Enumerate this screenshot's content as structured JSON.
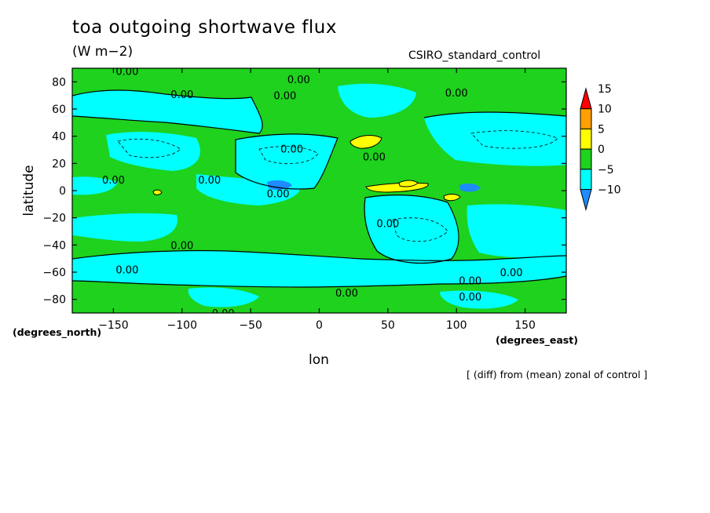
{
  "header": {
    "title": "toa outgoing shortwave flux",
    "units": "(W m−2)",
    "run_name": "CSIRO_standard_control",
    "footnote": "[ (diff) from (mean) zonal of control ]"
  },
  "colors": {
    "neg10": "#1e8cff",
    "neg5": "#00ffff",
    "zero": "#1ed21e",
    "pos5": "#ffff00",
    "pos10": "#ffa000",
    "pos15": "#ff0000",
    "contour": "#000000"
  },
  "chart_data": {
    "type": "contour map",
    "xlabel": "lon",
    "ylabel": "latitude",
    "x_unit_label": "(degrees_east)",
    "y_unit_label": "(degrees_north)",
    "xlim": [
      -180,
      180
    ],
    "ylim": [
      -90,
      90
    ],
    "x_ticks": [
      -150,
      -100,
      -50,
      0,
      50,
      100,
      150
    ],
    "x_tick_labels": [
      "−150",
      "−100",
      "−50",
      "0",
      "50",
      "100",
      "150"
    ],
    "y_ticks": [
      80,
      60,
      40,
      20,
      0,
      -20,
      -40,
      -60,
      -80
    ],
    "y_tick_labels": [
      "80",
      "60",
      "40",
      "20",
      "0",
      "−20",
      "−40",
      "−60",
      "−80"
    ],
    "colorbar": {
      "levels": [
        -10,
        -5,
        0,
        5,
        10,
        15
      ],
      "labels": [
        "−10",
        "−5",
        "0",
        "5",
        "10",
        "15"
      ],
      "colors": [
        "#1e8cff",
        "#00ffff",
        "#1ed21e",
        "#ffff00",
        "#ffa000",
        "#ff0000"
      ]
    },
    "contour_labels": [
      {
        "text": "0.00",
        "lon": -140,
        "lat": 88
      },
      {
        "text": "0.00",
        "lon": -100,
        "lat": 71
      },
      {
        "text": "0.00",
        "lon": -15,
        "lat": 82
      },
      {
        "text": "0.00",
        "lon": -25,
        "lat": 70
      },
      {
        "text": "0.00",
        "lon": 100,
        "lat": 72
      },
      {
        "text": "0.00",
        "lon": -20,
        "lat": 31
      },
      {
        "text": "0.00",
        "lon": 40,
        "lat": 25
      },
      {
        "text": "0.00",
        "lon": -150,
        "lat": 8
      },
      {
        "text": "0.00",
        "lon": -80,
        "lat": 8
      },
      {
        "text": "0.00",
        "lon": -30,
        "lat": -2
      },
      {
        "text": "0.00",
        "lon": 50,
        "lat": -24
      },
      {
        "text": "0.00",
        "lon": -100,
        "lat": -40
      },
      {
        "text": "0.00",
        "lon": -140,
        "lat": -58
      },
      {
        "text": "0.00",
        "lon": 110,
        "lat": -66
      },
      {
        "text": "0.00",
        "lon": 140,
        "lat": -60
      },
      {
        "text": "0.00",
        "lon": 20,
        "lat": -75
      },
      {
        "text": "0.00",
        "lon": 110,
        "lat": -78
      },
      {
        "text": "0.00",
        "lon": -70,
        "lat": -90
      }
    ]
  }
}
